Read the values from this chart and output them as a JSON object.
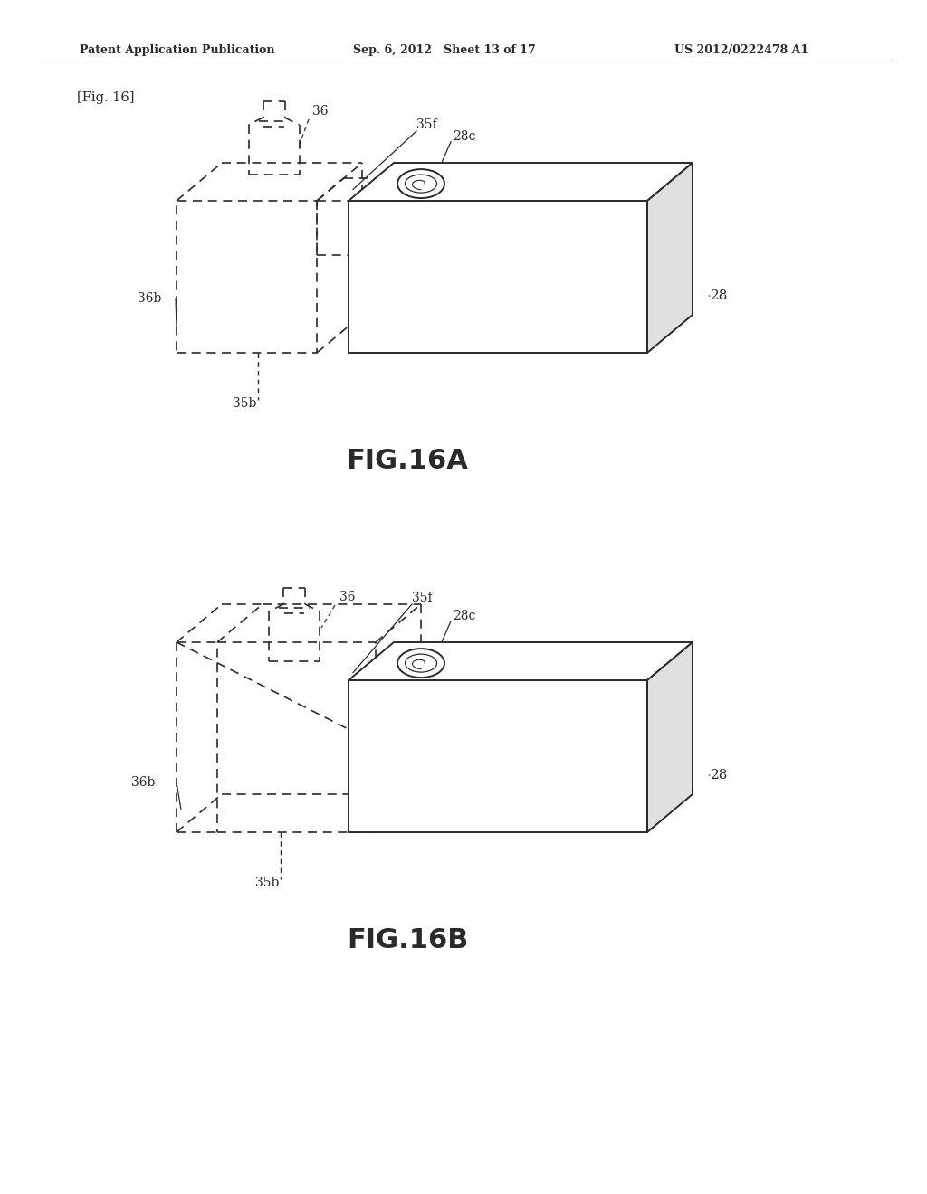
{
  "bg_color": "#ffffff",
  "header_left": "Patent Application Publication",
  "header_mid": "Sep. 6, 2012   Sheet 13 of 17",
  "header_right": "US 2012/0222478 A1",
  "fig_label": "[Fig. 16]",
  "figA_caption": "FIG.16A",
  "figB_caption": "FIG.16B",
  "line_color": "#2a2a2a",
  "dashed_color": "#2a2a2a",
  "text_color": "#2a2a2a"
}
